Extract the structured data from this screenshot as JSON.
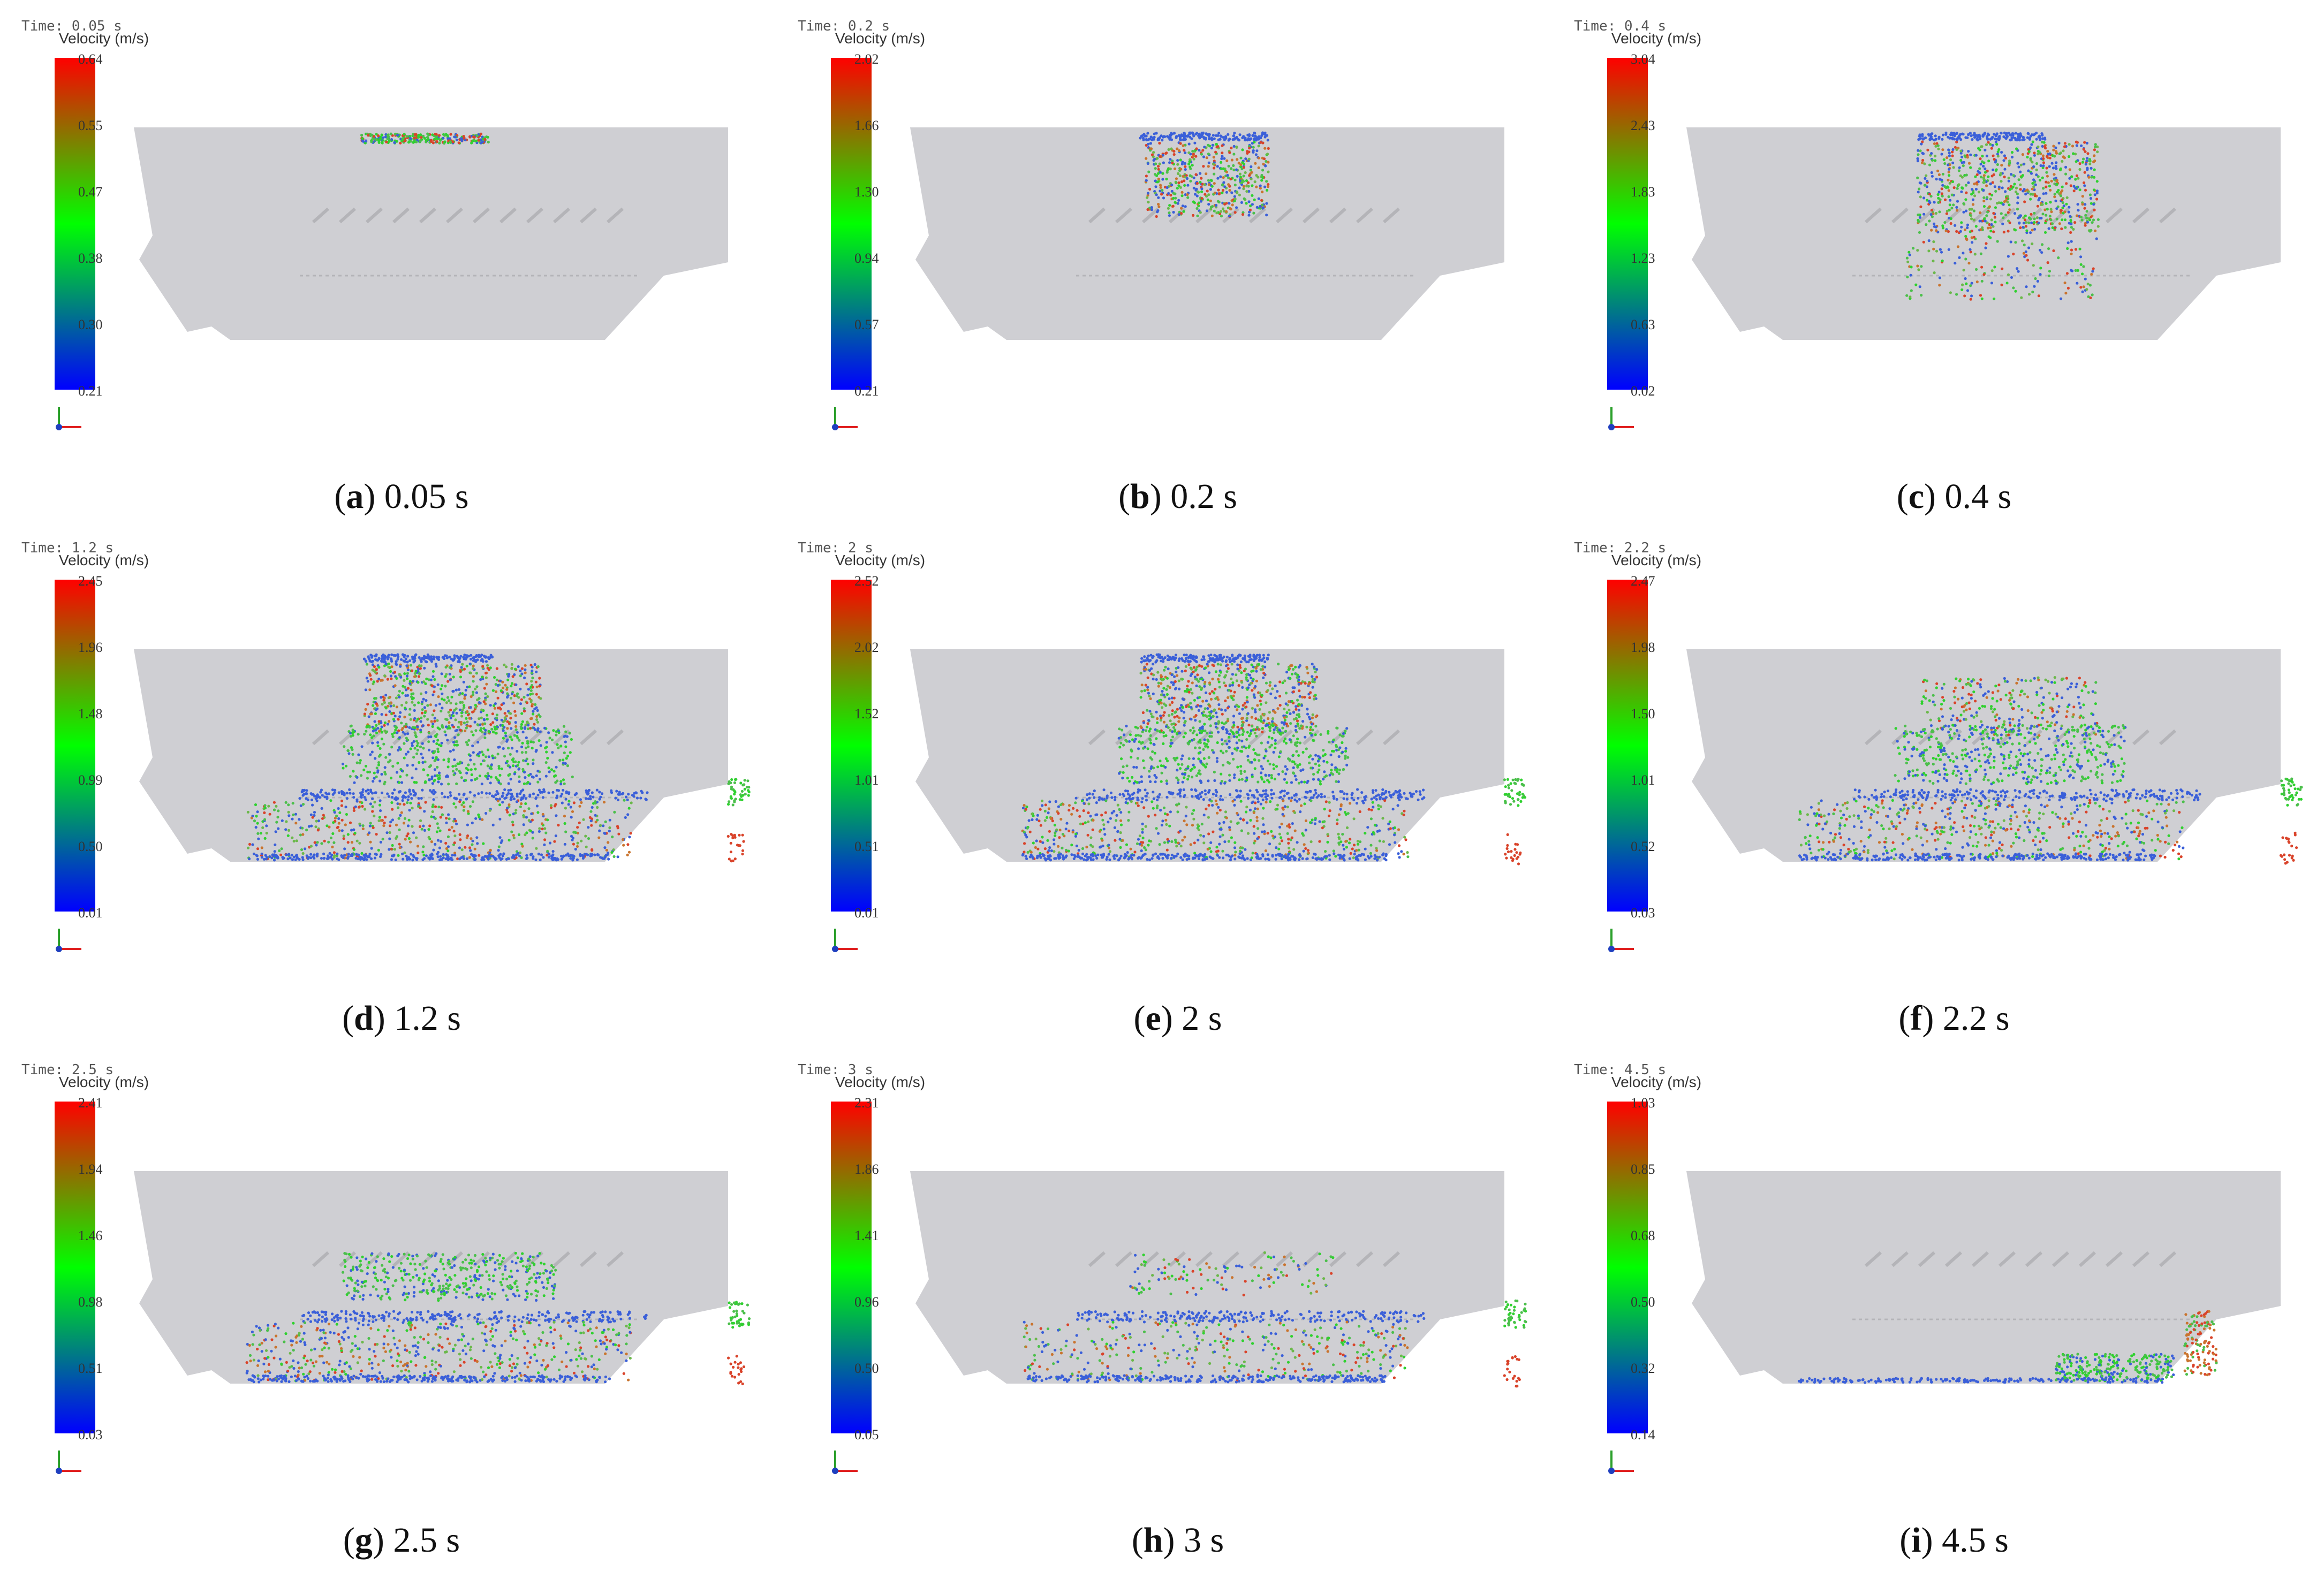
{
  "colorbar_title": "Velocity (m/s)",
  "colors": {
    "domain": "#cfcfd3",
    "low": "#0000ff",
    "mid": "#00ff00",
    "high": "#ff0000",
    "particle_blue": "#4a6fd8"
  },
  "panels": [
    {
      "letter": "a",
      "label": "0.05 s",
      "time_text": "Time: 0.05 s",
      "ticks": [
        "0.64",
        "0.55",
        "0.47",
        "0.38",
        "0.30",
        "0.21"
      ],
      "stage": 0
    },
    {
      "letter": "b",
      "label": "0.2 s",
      "time_text": "Time: 0.2 s",
      "ticks": [
        "2.02",
        "1.66",
        "1.30",
        "0.94",
        "0.57",
        "0.21"
      ],
      "stage": 1
    },
    {
      "letter": "c",
      "label": "0.4 s",
      "time_text": "Time: 0.4 s",
      "ticks": [
        "3.04",
        "2.43",
        "1.83",
        "1.23",
        "0.63",
        "0.02"
      ],
      "stage": 2
    },
    {
      "letter": "d",
      "label": "1.2 s",
      "time_text": "Time: 1.2 s",
      "ticks": [
        "2.45",
        "1.96",
        "1.48",
        "0.99",
        "0.50",
        "0.01"
      ],
      "stage": 3
    },
    {
      "letter": "e",
      "label": "2 s",
      "time_text": "Time: 2 s",
      "ticks": [
        "2.52",
        "2.02",
        "1.52",
        "1.01",
        "0.51",
        "0.01"
      ],
      "stage": 4
    },
    {
      "letter": "f",
      "label": "2.2 s",
      "time_text": "Time: 2.2 s",
      "ticks": [
        "2.47",
        "1.98",
        "1.50",
        "1.01",
        "0.52",
        "0.03"
      ],
      "stage": 5
    },
    {
      "letter": "g",
      "label": "2.5 s",
      "time_text": "Time: 2.5 s",
      "ticks": [
        "2.41",
        "1.94",
        "1.46",
        "0.98",
        "0.51",
        "0.03"
      ],
      "stage": 6
    },
    {
      "letter": "h",
      "label": "3 s",
      "time_text": "Time: 3 s",
      "ticks": [
        "2.31",
        "1.86",
        "1.41",
        "0.96",
        "0.50",
        "0.05"
      ],
      "stage": 7
    },
    {
      "letter": "i",
      "label": "4.5 s",
      "time_text": "Time: 4.5 s",
      "ticks": [
        "1.03",
        "0.85",
        "0.68",
        "0.50",
        "0.32",
        "0.14"
      ],
      "stage": 8
    }
  ]
}
